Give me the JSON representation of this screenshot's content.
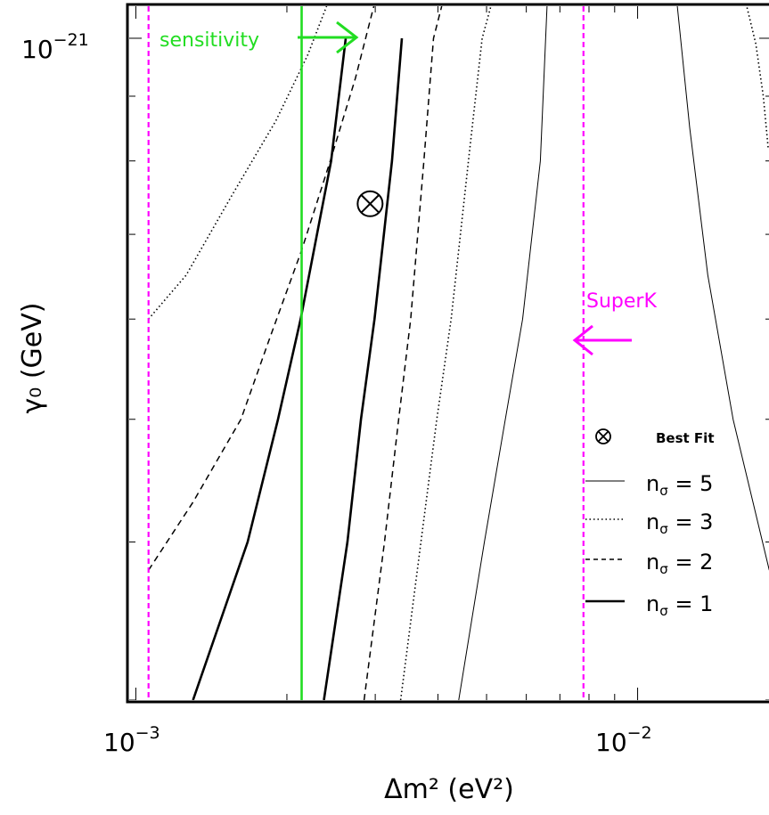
{
  "chart_data": {
    "type": "line",
    "xlabel": "Δm² (eV²)",
    "ylabel": "γ₀ (GeV)",
    "x_scale": "log",
    "y_scale": "log",
    "xlim": [
      0.00097,
      0.0185
    ],
    "ylim": [
      3e-22,
      1.06e-21
    ],
    "x_ticks": [
      {
        "value": 0.001,
        "label": "10",
        "exp": "−3"
      },
      {
        "value": 0.01,
        "label": "10",
        "exp": "−2"
      }
    ],
    "y_ticks": [
      {
        "value": 1e-21,
        "label": "10",
        "exp": "−21"
      }
    ],
    "series": [
      {
        "style": "n1",
        "x": [
          0.0013,
          0.00167,
          0.00192,
          0.00213,
          0.00245,
          0.00262
        ],
        "y": [
          3e-22,
          4e-22,
          5e-22,
          6e-22,
          8e-22,
          1e-21
        ]
      },
      {
        "style": "n1",
        "x": [
          0.00237,
          0.00264,
          0.00281,
          0.00299,
          0.00324,
          0.00339
        ],
        "y": [
          3e-22,
          4e-22,
          5e-22,
          6e-22,
          8e-22,
          1e-21
        ]
      },
      {
        "style": "n2",
        "x": [
          0.00106,
          0.0013,
          0.00162,
          0.00185,
          0.00214,
          0.00244,
          0.00274,
          0.00298
        ],
        "y": [
          3.8e-22,
          4.3e-22,
          5e-22,
          5.8e-22,
          6.8e-22,
          8e-22,
          9.3e-22,
          1.06e-21
        ]
      },
      {
        "style": "n2",
        "x": [
          0.00285,
          0.00313,
          0.00334,
          0.00353,
          0.00375,
          0.00392,
          0.00407
        ],
        "y": [
          3e-22,
          4e-22,
          5e-22,
          6e-22,
          8e-22,
          1e-21,
          1.06e-21
        ]
      },
      {
        "style": "n3",
        "x": [
          0.00106,
          0.00126,
          0.00155,
          0.0019,
          0.0022,
          0.0024
        ],
        "y": [
          6e-22,
          6.5e-22,
          7.5e-22,
          8.6e-22,
          9.7e-22,
          1.06e-21
        ]
      },
      {
        "style": "n3",
        "x": [
          0.00337,
          0.0037,
          0.00398,
          0.00425,
          0.0046,
          0.0049,
          0.0051
        ],
        "y": [
          3e-22,
          4e-22,
          5e-22,
          6e-22,
          8e-22,
          1e-21,
          1.06e-21
        ]
      },
      {
        "style": "n5",
        "x": [
          0.0044,
          0.00495,
          0.00545,
          0.0059,
          0.0064,
          0.0066
        ],
        "y": [
          3e-22,
          4e-22,
          5e-22,
          6e-22,
          8e-22,
          1.06e-21
        ]
      },
      {
        "style": "n5",
        "x": [
          0.0183,
          0.0155,
          0.0138,
          0.0127,
          0.012
        ],
        "y": [
          3.8e-22,
          5e-22,
          6.5e-22,
          8.5e-22,
          1.06e-21
        ]
      },
      {
        "style": "n3",
        "x": [
          0.0182,
          0.0178,
          0.0172,
          0.0165
        ],
        "y": [
          8.2e-22,
          9e-22,
          9.9e-22,
          1.06e-21
        ]
      }
    ],
    "vertical_lines": [
      {
        "x": 0.00106,
        "style": "superk"
      },
      {
        "x": 0.0078,
        "style": "superk"
      },
      {
        "x": 0.00214,
        "style": "sensitivity"
      }
    ],
    "best_fit": {
      "x": 0.00293,
      "y": 7.4e-22
    },
    "annotations": [
      {
        "text": "sensitivity",
        "color": "#22dd22",
        "arrow": "right"
      },
      {
        "text": "SuperK",
        "color": "#ff00ff",
        "arrow": "left"
      }
    ],
    "legend": {
      "position": "bottom-right",
      "items": [
        {
          "symbol": "best-fit",
          "label": "Best Fit"
        },
        {
          "symbol": "n5",
          "label": "n",
          "sub": "σ",
          "value": " = 5"
        },
        {
          "symbol": "n3",
          "label": "n",
          "sub": "σ",
          "value": " = 3"
        },
        {
          "symbol": "n2",
          "label": "n",
          "sub": "σ",
          "value": " = 2"
        },
        {
          "symbol": "n1",
          "label": "n",
          "sub": "σ",
          "value": " = 1"
        }
      ]
    },
    "colors": {
      "frame": "#000000",
      "curve": "#000000",
      "sensitivity": "#22dd22",
      "superk": "#ff00ff"
    }
  }
}
